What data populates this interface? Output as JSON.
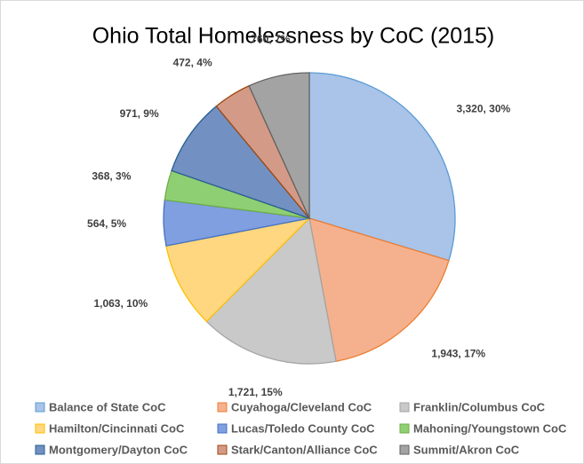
{
  "chart_data": {
    "type": "pie",
    "title": "Ohio Total Homelessness by CoC (2015)",
    "categories": [
      "Balance of State CoC",
      "Cuyahoga/Cleveland CoC",
      "Franklin/Columbus CoC",
      "Hamilton/Cincinnati CoC",
      "Lucas/Toledo County CoC",
      "Mahoning/Youngstown CoC",
      "Montgomery/Dayton CoC",
      "Stark/Canton/Alliance CoC",
      "Summit/Akron CoC"
    ],
    "values": [
      3320,
      1943,
      1721,
      1063,
      564,
      368,
      971,
      472,
      760
    ],
    "value_labels": [
      "3,320, 30%",
      "1,943, 17%",
      "1,721, 15%",
      "1,063, 10%",
      "564, 5%",
      "368, 3%",
      "971, 9%",
      "472, 4%",
      "760, 7%"
    ],
    "colors": [
      "#a9c4e8",
      "#f5b18e",
      "#c9c9c9",
      "#ffd780",
      "#7f9fe0",
      "#8fcf74",
      "#7390c2",
      "#d49a88",
      "#a3a3a3"
    ],
    "edge_colors": [
      "#5b9bd5",
      "#ed7d31",
      "#a5a5a5",
      "#ffc000",
      "#4472c4",
      "#70ad47",
      "#255e91",
      "#9e480e",
      "#636363"
    ],
    "legend": "bottom"
  }
}
